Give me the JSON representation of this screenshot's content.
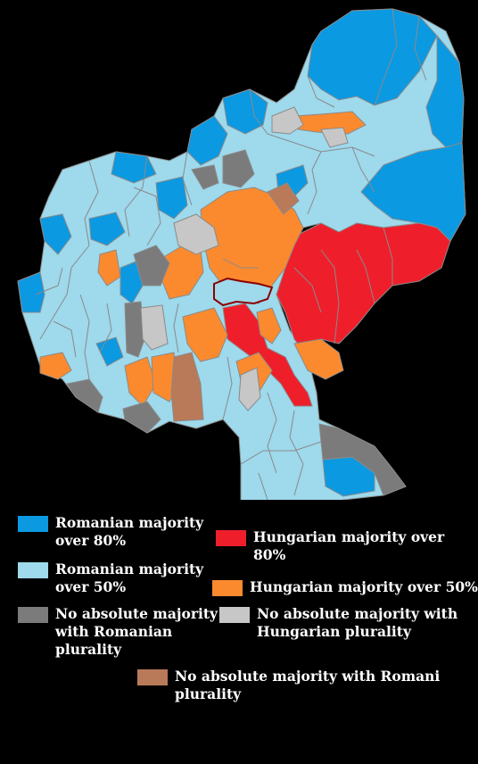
{
  "colors": {
    "romanian_80": "#0b99e2",
    "romanian_50": "#9ed9ec",
    "hungarian_80": "#ee1f2b",
    "hungarian_50": "#fb8a2f",
    "no_majority_romanian": "#7b7b7b",
    "no_majority_hungarian": "#c7c7c7",
    "no_majority_romani": "#b97a5a",
    "border": "#8a8a8a",
    "city_border": "#8b0000"
  },
  "legend": {
    "romanian_80": "Romanian majority over 80%",
    "romanian_50": "Romanian majority over 50%",
    "hungarian_80": "Hungarian majority over 80%",
    "hungarian_50": "Hungarian majority over 50%",
    "no_majority_romanian": "No absolute majority with Romanian plurality",
    "no_majority_hungarian": "No absolute majority with Hungarian plurality",
    "no_majority_romani": "No absolute majority with Romani plurality"
  }
}
